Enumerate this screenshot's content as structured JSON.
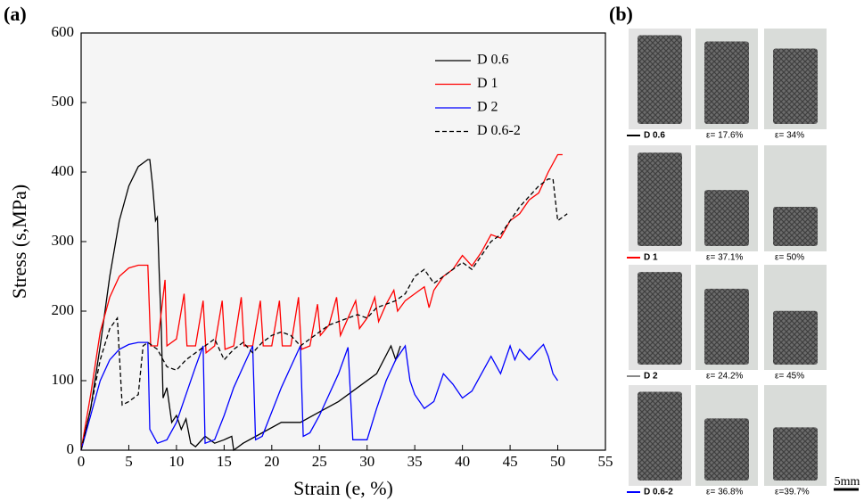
{
  "chart_data": {
    "type": "line",
    "panel_label": "(a)",
    "x_label": "Strain (e, %)",
    "y_label": "Stress (s,MPa)",
    "xlim": [
      0,
      55
    ],
    "xticks": [
      0,
      5,
      10,
      15,
      20,
      25,
      30,
      35,
      40,
      45,
      50,
      55
    ],
    "ylim": [
      0,
      600
    ],
    "yticks": [
      0,
      100,
      200,
      300,
      400,
      500,
      600
    ],
    "legend": "upper right",
    "series": [
      {
        "name": "D 0.6",
        "color": "#000000",
        "dashed": false,
        "x": [
          0,
          1,
          2,
          3,
          4,
          5,
          6,
          7,
          7.2,
          7.5,
          7.8,
          8,
          8.2,
          8.4,
          8.6,
          9,
          9.5,
          10,
          10.5,
          11,
          11.5,
          12,
          13,
          14,
          15,
          15.8,
          16,
          17,
          19,
          21,
          23,
          25,
          27,
          29,
          31,
          32.5,
          33,
          33.5
        ],
        "values": [
          0,
          60,
          150,
          250,
          330,
          380,
          408,
          418,
          418,
          380,
          330,
          335,
          250,
          180,
          75,
          90,
          40,
          50,
          30,
          45,
          10,
          5,
          20,
          10,
          15,
          20,
          0,
          10,
          25,
          40,
          40,
          55,
          70,
          90,
          110,
          150,
          130,
          150
        ]
      },
      {
        "name": "D 1",
        "color": "#ff0000",
        "dashed": false,
        "x": [
          0,
          1,
          2,
          3,
          4,
          5,
          6,
          7,
          7.3,
          8,
          8.8,
          9,
          10,
          10.8,
          11.1,
          12,
          12.8,
          13.1,
          14,
          14.8,
          15.1,
          16,
          16.8,
          17.1,
          18,
          18.8,
          19.1,
          20,
          20.8,
          21.1,
          22,
          22.8,
          23.1,
          24,
          24.8,
          25.1,
          26,
          26.8,
          27.2,
          28,
          28.8,
          29.2,
          30,
          30.8,
          31.2,
          32,
          32.8,
          33.2,
          34,
          35,
          36,
          36.5,
          37,
          38,
          39,
          40,
          41,
          42,
          43,
          44,
          45,
          46,
          47,
          48,
          49,
          50,
          50.5
        ],
        "values": [
          0,
          80,
          170,
          220,
          250,
          262,
          266,
          266,
          150,
          150,
          245,
          150,
          160,
          225,
          150,
          150,
          215,
          140,
          150,
          215,
          145,
          150,
          220,
          150,
          150,
          215,
          150,
          150,
          215,
          150,
          150,
          220,
          145,
          150,
          210,
          165,
          180,
          220,
          165,
          190,
          215,
          175,
          190,
          220,
          185,
          210,
          230,
          200,
          215,
          225,
          235,
          205,
          230,
          250,
          260,
          280,
          265,
          285,
          310,
          305,
          330,
          340,
          360,
          370,
          400,
          425,
          425
        ]
      },
      {
        "name": "D 2",
        "color": "#0000ff",
        "dashed": false,
        "x": [
          0,
          1,
          2,
          3,
          4,
          5,
          6,
          7,
          7.2,
          8,
          9,
          10,
          11,
          12,
          12.8,
          13,
          14,
          15,
          16,
          17,
          18,
          18.3,
          19,
          20,
          21,
          22,
          23,
          23.3,
          24,
          25,
          26,
          27,
          28,
          28.5,
          30,
          31,
          32,
          33,
          34,
          34.5,
          35,
          36,
          37,
          38,
          39,
          40,
          41,
          42,
          43,
          44,
          45,
          45.5,
          46,
          47,
          48,
          48.5,
          49,
          49.5,
          50
        ],
        "values": [
          0,
          50,
          100,
          130,
          145,
          152,
          155,
          155,
          30,
          10,
          15,
          40,
          80,
          120,
          150,
          10,
          15,
          50,
          90,
          120,
          150,
          15,
          20,
          55,
          90,
          120,
          150,
          20,
          25,
          50,
          80,
          110,
          148,
          15,
          15,
          60,
          100,
          130,
          150,
          100,
          80,
          60,
          70,
          110,
          95,
          75,
          85,
          110,
          135,
          110,
          150,
          130,
          145,
          130,
          145,
          152,
          135,
          110,
          100
        ]
      },
      {
        "name": "D 0.6-2",
        "color": "#000000",
        "dashed": true,
        "x": [
          0,
          1,
          2,
          3,
          3.8,
          4.3,
          5,
          6,
          6.5,
          7,
          8,
          9,
          10,
          11,
          12,
          13,
          14,
          15,
          16,
          17,
          18,
          19,
          20,
          21,
          22,
          23,
          24,
          25,
          26,
          27,
          28,
          29,
          30,
          31,
          32,
          33,
          34,
          35,
          36,
          37,
          38,
          39,
          40,
          41,
          42,
          43,
          44,
          45,
          46,
          47,
          48,
          49,
          49.5,
          50,
          51
        ],
        "values": [
          0,
          60,
          130,
          175,
          190,
          65,
          70,
          80,
          150,
          155,
          145,
          120,
          115,
          130,
          140,
          150,
          160,
          130,
          145,
          155,
          140,
          155,
          165,
          170,
          165,
          150,
          160,
          170,
          180,
          185,
          190,
          195,
          190,
          205,
          210,
          215,
          225,
          250,
          260,
          240,
          250,
          260,
          270,
          260,
          280,
          300,
          310,
          330,
          350,
          365,
          380,
          390,
          390,
          330,
          340
        ]
      }
    ]
  },
  "panel_b": {
    "label": "(b)",
    "scale": "5mm",
    "rows": [
      {
        "name": "D 0.6",
        "captions": [
          "ε= 17.6%",
          "ε= 34%"
        ]
      },
      {
        "name": "D 1",
        "captions": [
          "ε= 37.1%",
          "ε= 50%"
        ]
      },
      {
        "name": "D 2",
        "captions": [
          "ε= 24.2%",
          "ε= 45%"
        ]
      },
      {
        "name": "D 0.6-2",
        "captions": [
          "ε= 36.8%",
          "ε=39.7%"
        ]
      }
    ]
  }
}
